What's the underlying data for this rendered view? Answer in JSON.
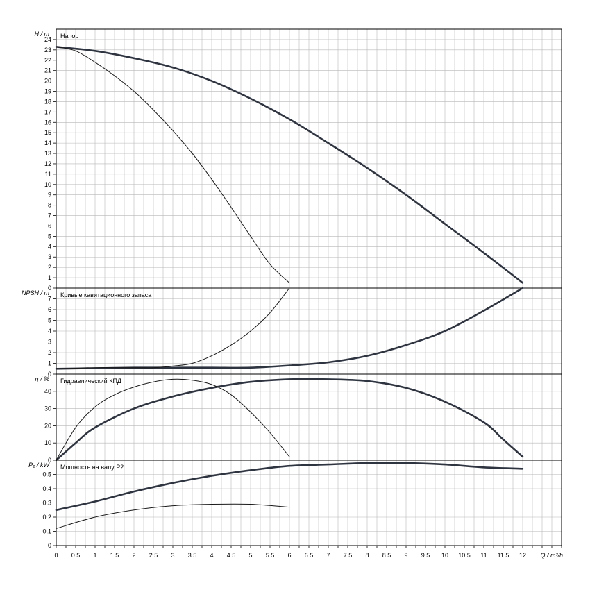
{
  "chart_data": [
    {
      "type": "line",
      "title": "Напор",
      "ylabel": "H / m",
      "xlim": [
        0,
        13
      ],
      "ylim": [
        0,
        25
      ],
      "yticks": [
        0,
        1,
        2,
        3,
        4,
        5,
        6,
        7,
        8,
        9,
        10,
        11,
        12,
        13,
        14,
        15,
        16,
        17,
        18,
        19,
        20,
        21,
        22,
        23,
        24
      ],
      "grid": true,
      "series": [
        {
          "weight": "bold",
          "x": [
            0,
            1,
            2,
            3,
            4,
            5,
            6,
            7,
            8,
            9,
            10,
            11,
            12
          ],
          "y": [
            23.3,
            22.9,
            22.2,
            21.3,
            20.0,
            18.3,
            16.3,
            14.0,
            11.6,
            9.0,
            6.2,
            3.4,
            0.5
          ]
        },
        {
          "weight": "thin",
          "x": [
            0,
            0.5,
            1,
            1.5,
            2,
            2.5,
            3,
            3.5,
            4,
            4.5,
            5,
            5.5,
            6
          ],
          "y": [
            23.3,
            22.9,
            21.8,
            20.5,
            19.0,
            17.2,
            15.2,
            13.0,
            10.5,
            7.8,
            5.0,
            2.3,
            0.5
          ]
        }
      ]
    },
    {
      "type": "line",
      "title": "Кривые кавитационного запаса",
      "ylabel": "NPSH / m",
      "xlim": [
        0,
        13
      ],
      "ylim": [
        0,
        8
      ],
      "yticks": [
        0,
        1,
        2,
        3,
        4,
        5,
        6,
        7
      ],
      "grid": true,
      "series": [
        {
          "weight": "bold",
          "x": [
            0,
            1,
            2,
            3,
            4,
            5,
            6,
            7,
            8,
            9,
            10,
            11,
            12
          ],
          "y": [
            0.5,
            0.55,
            0.6,
            0.6,
            0.6,
            0.6,
            0.8,
            1.1,
            1.7,
            2.7,
            4.0,
            5.9,
            8.0
          ]
        },
        {
          "weight": "thin",
          "x": [
            0,
            0.5,
            1,
            1.5,
            2,
            2.5,
            3,
            3.5,
            4,
            4.5,
            5,
            5.5,
            6
          ],
          "y": [
            0.5,
            0.55,
            0.6,
            0.6,
            0.6,
            0.6,
            0.75,
            1.0,
            1.7,
            2.7,
            4.0,
            5.7,
            8.0
          ]
        }
      ]
    },
    {
      "type": "line",
      "title": "Гидравлический КПД",
      "ylabel": "η / %",
      "xlim": [
        0,
        13
      ],
      "ylim": [
        0,
        50
      ],
      "yticks": [
        0,
        10,
        20,
        30,
        40
      ],
      "grid": true,
      "series": [
        {
          "weight": "bold",
          "x": [
            0,
            0.5,
            1,
            2,
            3,
            4,
            5,
            6,
            7,
            8,
            9,
            10,
            11,
            11.5,
            12
          ],
          "y": [
            0,
            10,
            19,
            30,
            37,
            42,
            45.5,
            47,
            47,
            46,
            42,
            34,
            22,
            12,
            2
          ]
        },
        {
          "weight": "thin",
          "x": [
            0,
            0.5,
            1,
            1.5,
            2,
            2.5,
            3,
            3.5,
            4,
            4.5,
            5,
            5.5,
            6
          ],
          "y": [
            0,
            19,
            31,
            38,
            42.5,
            45.5,
            47,
            46.5,
            44,
            38,
            28,
            16,
            2
          ]
        }
      ]
    },
    {
      "type": "line",
      "title": "Мощность на валу P2",
      "ylabel": "P₂ / kW",
      "xlabel": "Q / m³/h",
      "xlim": [
        0,
        13
      ],
      "ylim": [
        0,
        0.6
      ],
      "yticks": [
        0,
        0.1,
        0.2,
        0.3,
        0.4,
        0.5
      ],
      "xticks": [
        0,
        0.5,
        1,
        1.5,
        2,
        2.5,
        3,
        3.5,
        4,
        4.5,
        5,
        5.5,
        6,
        6.5,
        7,
        7.5,
        8,
        8.5,
        9,
        9.5,
        10,
        10.5,
        11,
        11.5,
        12
      ],
      "grid": true,
      "series": [
        {
          "weight": "bold",
          "x": [
            0,
            1,
            2,
            3,
            4,
            5,
            6,
            7,
            8,
            9,
            10,
            11,
            12
          ],
          "y": [
            0.25,
            0.31,
            0.38,
            0.44,
            0.49,
            0.53,
            0.56,
            0.57,
            0.58,
            0.58,
            0.57,
            0.55,
            0.54
          ]
        },
        {
          "weight": "thin",
          "x": [
            0,
            1,
            2,
            3,
            4,
            5,
            6
          ],
          "y": [
            0.12,
            0.2,
            0.25,
            0.28,
            0.29,
            0.29,
            0.27
          ]
        }
      ]
    }
  ]
}
